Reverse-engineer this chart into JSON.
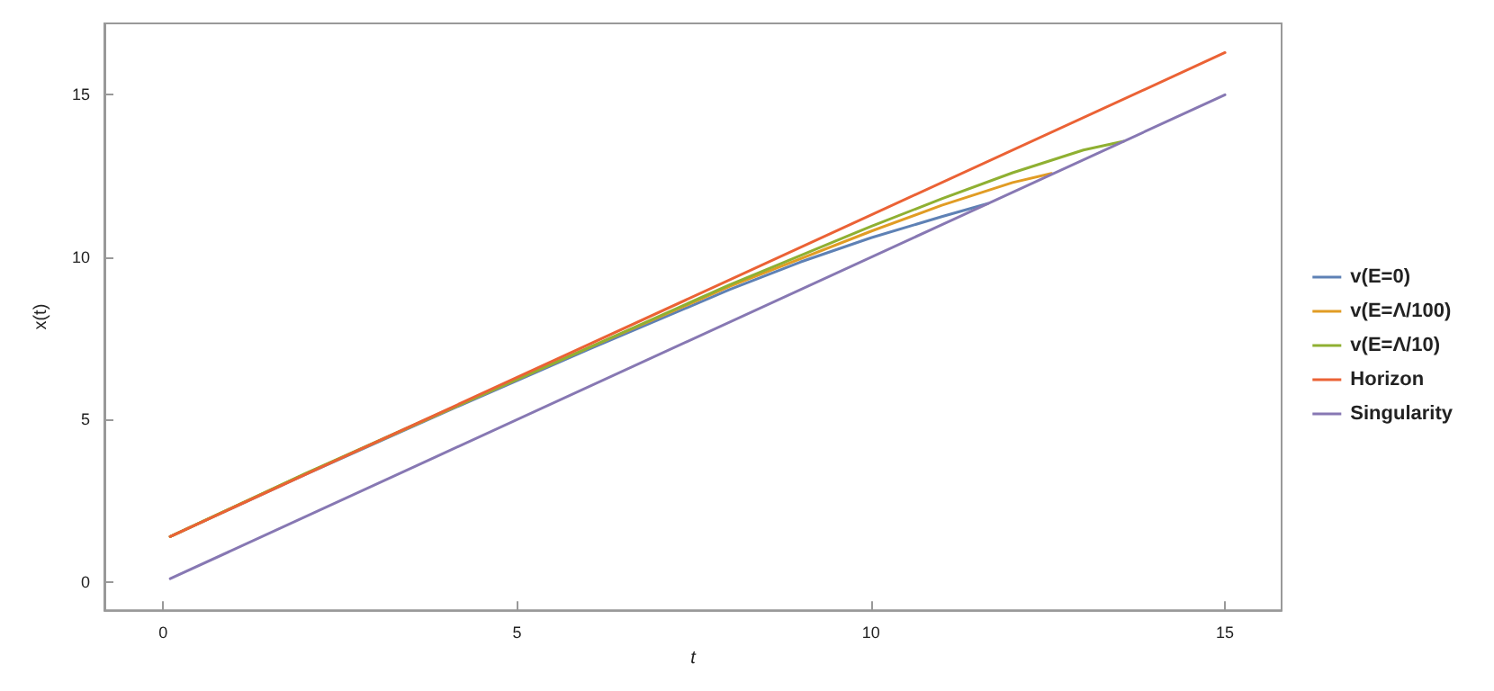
{
  "chart_data": {
    "type": "line",
    "xlabel": "t",
    "ylabel": "x(t)",
    "xlim": [
      -0.83,
      15.8
    ],
    "ylim": [
      -0.87,
      17.2
    ],
    "xticks": [
      0,
      5,
      10,
      15
    ],
    "yticks": [
      0,
      5,
      10,
      15
    ],
    "grid": false,
    "legend": "right",
    "marker": "none",
    "line_style": "solid",
    "series": [
      {
        "name": "v(E=0)",
        "color": "#5e81b5",
        "x": [
          0.1,
          2,
          4,
          6,
          8,
          9,
          10,
          11,
          11.65
        ],
        "values": [
          1.4,
          3.3,
          5.25,
          7.15,
          9.0,
          9.85,
          10.6,
          11.25,
          11.65
        ]
      },
      {
        "name": "v(E=Λ/100)",
        "color": "#e19c24",
        "x": [
          0.1,
          2,
          4,
          6,
          8,
          10,
          11,
          12,
          12.55
        ],
        "values": [
          1.4,
          3.32,
          5.27,
          7.2,
          9.1,
          10.8,
          11.6,
          12.3,
          12.58
        ]
      },
      {
        "name": "v(E=Λ/10)",
        "color": "#8fb032",
        "x": [
          0.1,
          2,
          4,
          6,
          8,
          10,
          11,
          12,
          13,
          13.57
        ],
        "values": [
          1.4,
          3.33,
          5.28,
          7.2,
          9.15,
          10.95,
          11.8,
          12.6,
          13.3,
          13.57
        ]
      },
      {
        "name": "Horizon",
        "color": "#eb6235",
        "x": [
          0.1,
          15
        ],
        "values": [
          1.4,
          16.3
        ]
      },
      {
        "name": "Singularity",
        "color": "#8778b3",
        "x": [
          0.1,
          15
        ],
        "values": [
          0.1,
          15
        ]
      }
    ]
  }
}
